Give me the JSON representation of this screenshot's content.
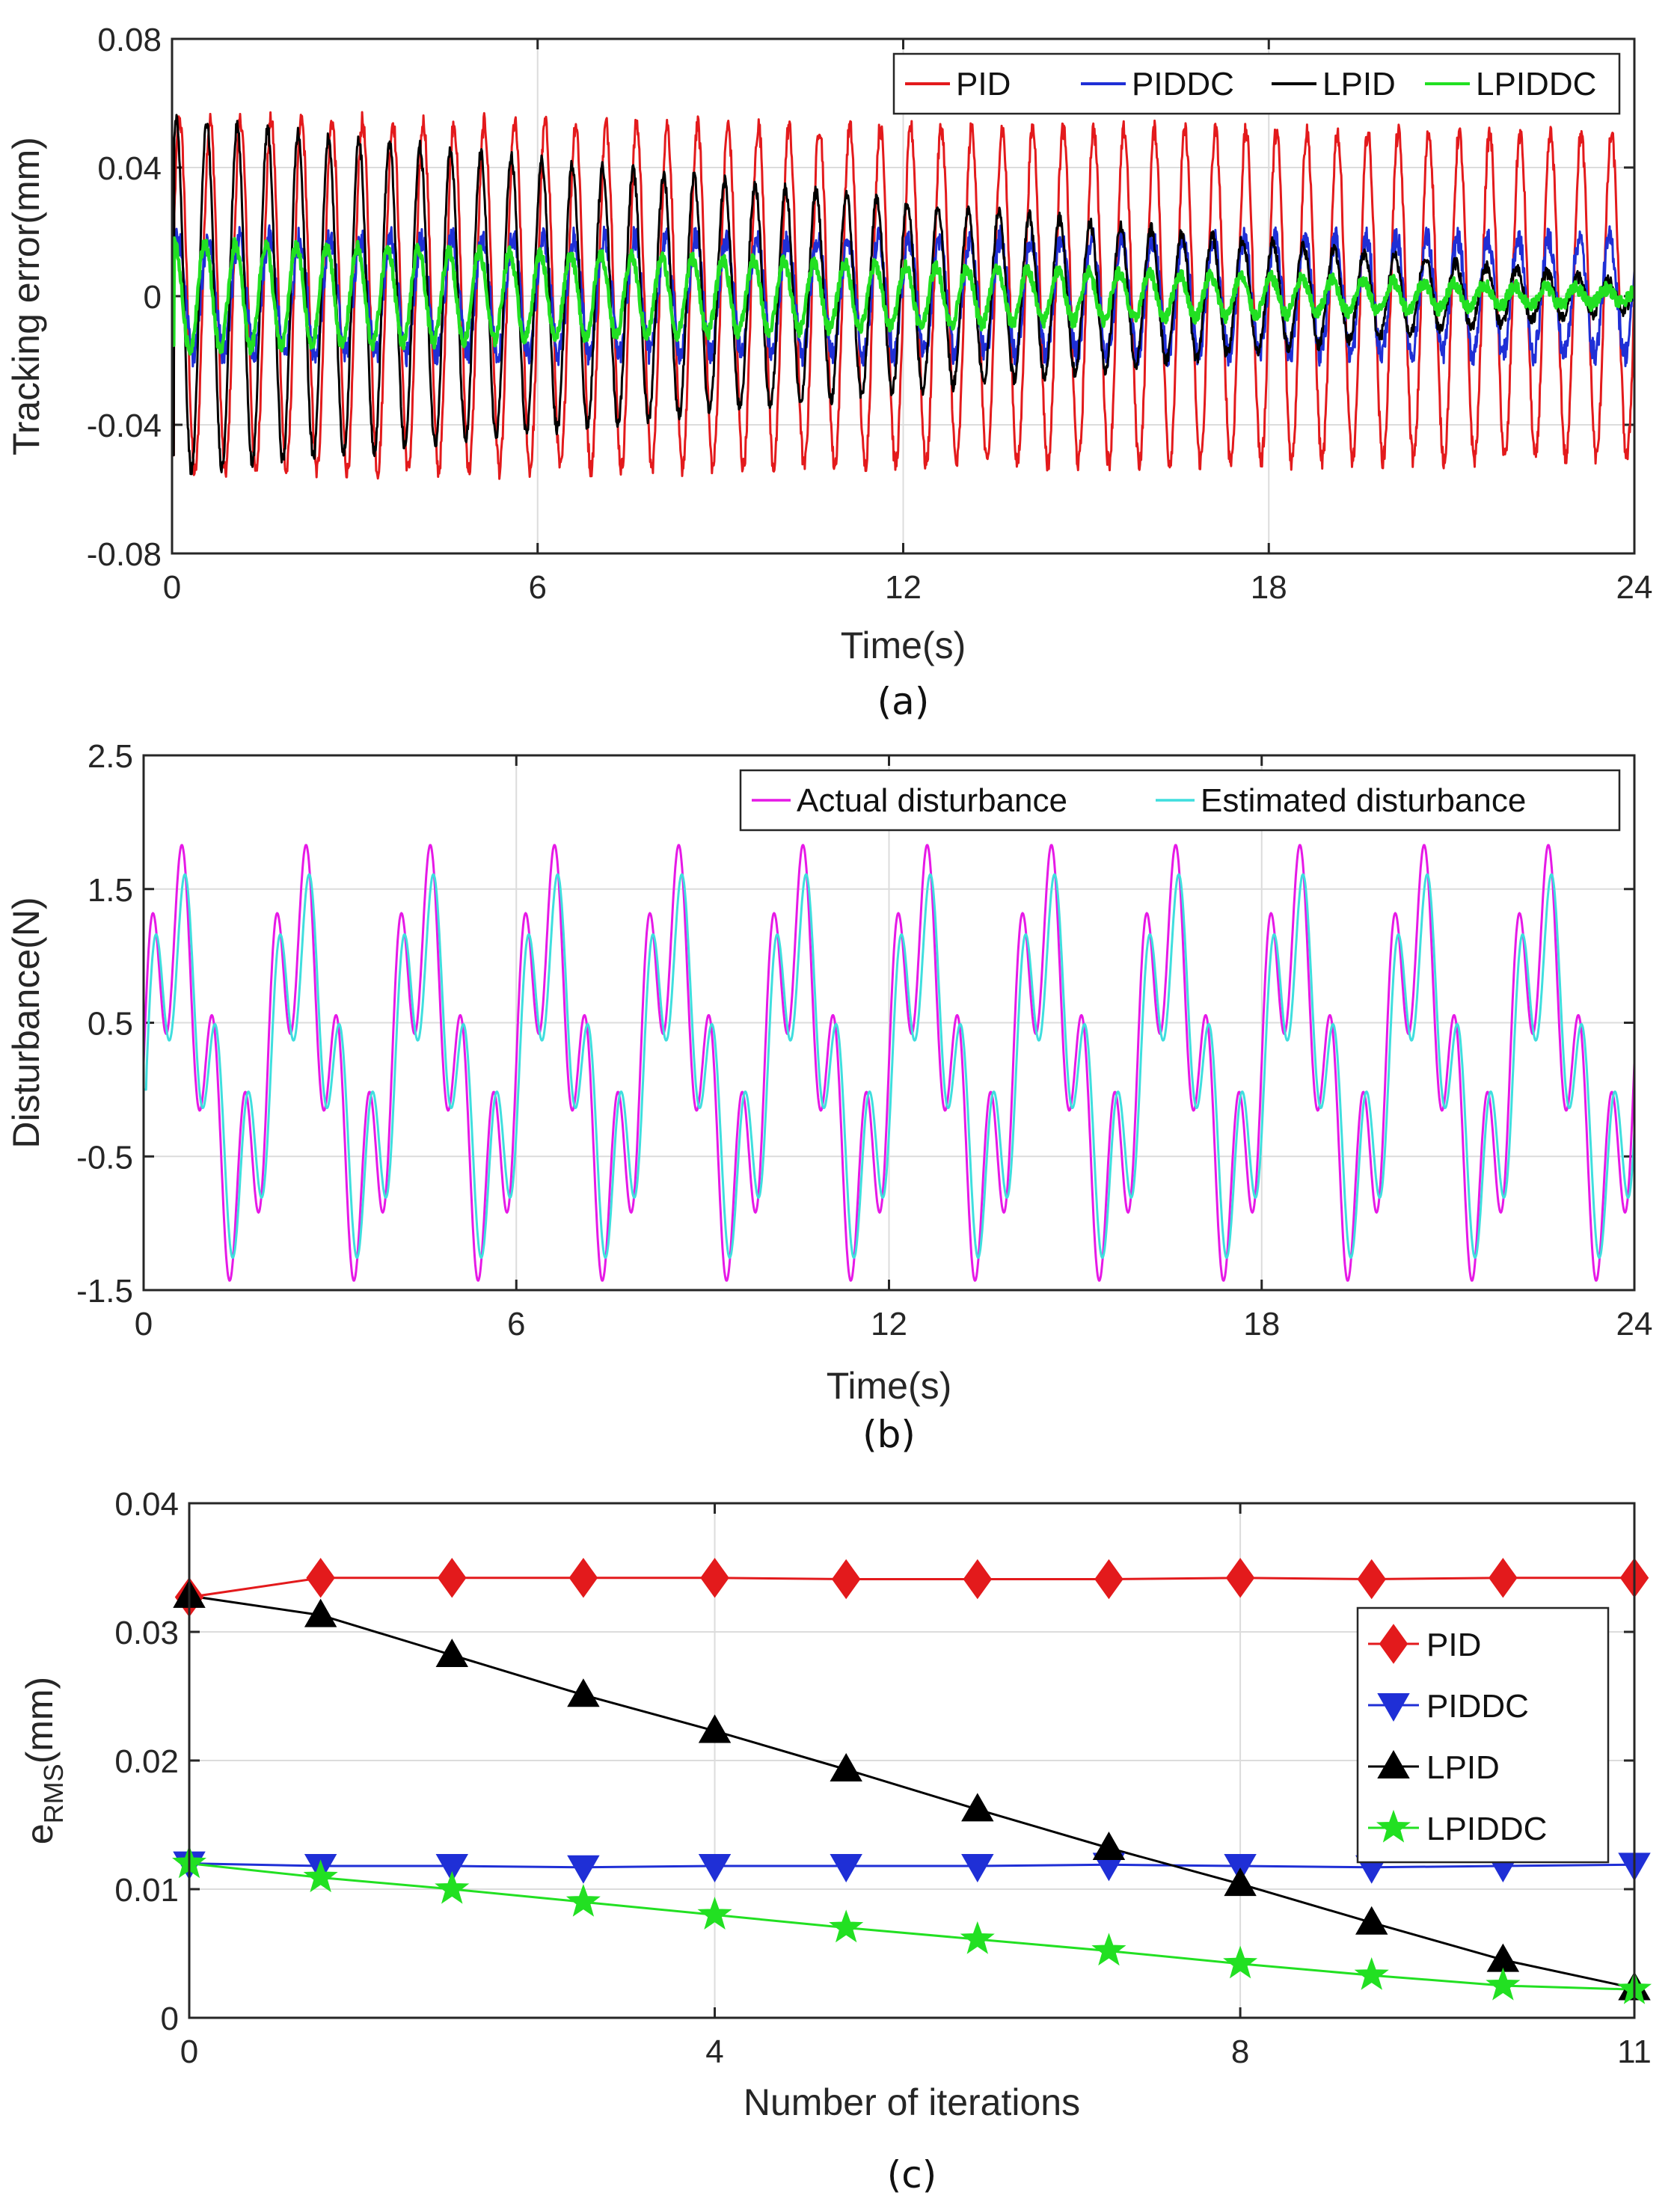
{
  "chart_data": [
    {
      "type": "line",
      "caption": "(a)",
      "xlabel": "Time(s)",
      "ylabel": "Tracking error(mm)",
      "xlim": [
        0,
        24
      ],
      "ylim": [
        -0.08,
        0.08
      ],
      "xticks": [
        "0",
        "6",
        "12",
        "18",
        "24"
      ],
      "yticks": [
        "-0.08",
        "-0.04",
        "0",
        "0.04",
        "0.08"
      ],
      "grid": true,
      "legend_position": "top-right",
      "legend_orientation": "horizontal",
      "signal_period_s": 0.5,
      "series": [
        {
          "name": "PID",
          "color": "#e31a1c",
          "amplitude_start": 0.055,
          "amplitude_end": 0.05,
          "noise": 0.003
        },
        {
          "name": "PIDDC",
          "color": "#1f2fd6",
          "amplitude_start": 0.018,
          "amplitude_end": 0.018,
          "noise": 0.004
        },
        {
          "name": "LPID",
          "color": "#000000",
          "amplitude_start": 0.055,
          "amplitude_end": 0.004,
          "noise": 0.002
        },
        {
          "name": "LPIDDC",
          "color": "#22e022",
          "amplitude_start": 0.017,
          "amplitude_end": 0.002,
          "noise": 0.002
        }
      ]
    },
    {
      "type": "line",
      "caption": "(b)",
      "xlabel": "Time(s)",
      "ylabel": "Disturbance(N)",
      "xlim": [
        0,
        24
      ],
      "ylim": [
        -1.5,
        2.5
      ],
      "xticks": [
        "0",
        "6",
        "12",
        "18",
        "24"
      ],
      "yticks": [
        "-1.5",
        "-0.5",
        "0.5",
        "1.5",
        "2.5"
      ],
      "grid": true,
      "legend_position": "top-right",
      "legend_orientation": "horizontal",
      "signal_formula": "0.2 + 1.0*sin(2*pi*t/2) + 0.7*sin(2*pi*t/0.5)",
      "series": [
        {
          "name": "Actual disturbance",
          "color": "#e619e6",
          "gain": 1.0,
          "lag_s": 0.0
        },
        {
          "name": "Estimated disturbance",
          "color": "#3fdede",
          "gain": 0.88,
          "lag_s": 0.05
        }
      ]
    },
    {
      "type": "line",
      "caption": "(c)",
      "xlabel": "Number of iterations",
      "ylabel": "e",
      "ylabel_sub": "RMS",
      "ylabel_unit": "(mm)",
      "xlim": [
        0,
        11
      ],
      "ylim": [
        0,
        0.04
      ],
      "xticks": [
        "0",
        "4",
        "8",
        "11"
      ],
      "yticks": [
        "0",
        "0.01",
        "0.02",
        "0.03",
        "0.04"
      ],
      "grid": true,
      "legend_position": "right",
      "legend_orientation": "vertical",
      "x": [
        0,
        1,
        2,
        3,
        4,
        5,
        6,
        7,
        8,
        9,
        10,
        11
      ],
      "series": [
        {
          "name": "PID",
          "color": "#e31a1c",
          "marker": "diamond",
          "values": [
            0.0327,
            0.0342,
            0.0342,
            0.0342,
            0.0342,
            0.0341,
            0.0341,
            0.0341,
            0.0342,
            0.0341,
            0.0342,
            0.0342
          ]
        },
        {
          "name": "PIDDC",
          "color": "#1f2fd6",
          "marker": "triangle-down",
          "values": [
            0.012,
            0.0118,
            0.0118,
            0.0117,
            0.0118,
            0.0118,
            0.0118,
            0.0119,
            0.0118,
            0.0117,
            0.0118,
            0.0119
          ]
        },
        {
          "name": "LPID",
          "color": "#000000",
          "marker": "triangle-up",
          "values": [
            0.0328,
            0.0313,
            0.0282,
            0.0251,
            0.0223,
            0.0193,
            0.0162,
            0.0132,
            0.0104,
            0.0074,
            0.0045,
            0.0023
          ]
        },
        {
          "name": "LPIDDC",
          "color": "#22e022",
          "marker": "star",
          "values": [
            0.012,
            0.0109,
            0.01,
            0.009,
            0.008,
            0.007,
            0.0061,
            0.0052,
            0.0042,
            0.0033,
            0.0025,
            0.0022
          ]
        }
      ]
    }
  ]
}
